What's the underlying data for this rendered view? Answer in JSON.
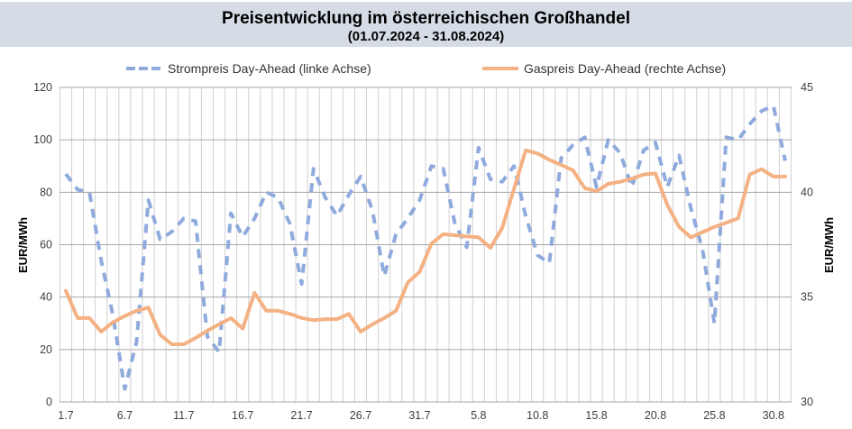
{
  "chart_data": {
    "type": "line",
    "title": "Preisentwicklung im österreichischen Großhandel",
    "subtitle": "(01.07.2024 - 31.08.2024)",
    "ylabel": "EUR/MWh",
    "y2label": "EUR/MWh",
    "ylim": [
      0,
      120
    ],
    "y2lim": [
      30,
      45
    ],
    "yticks": [
      "0",
      "20",
      "40",
      "60",
      "80",
      "100",
      "120"
    ],
    "y2ticks": [
      "30",
      "35",
      "40",
      "45"
    ],
    "x_tick_labels": [
      "1.7",
      "6.7",
      "11.7",
      "16.7",
      "21.7",
      "26.7",
      "31.7",
      "5.8",
      "10.8",
      "15.8",
      "20.8",
      "25.8",
      "30.8"
    ],
    "x": [
      "1.7",
      "2.7",
      "3.7",
      "4.7",
      "5.7",
      "6.7",
      "7.7",
      "8.7",
      "9.7",
      "10.7",
      "11.7",
      "12.7",
      "13.7",
      "14.7",
      "15.7",
      "16.7",
      "17.7",
      "18.7",
      "19.7",
      "20.7",
      "21.7",
      "22.7",
      "23.7",
      "24.7",
      "25.7",
      "26.7",
      "27.7",
      "28.7",
      "29.7",
      "30.7",
      "31.7",
      "1.8",
      "2.8",
      "3.8",
      "4.8",
      "5.8",
      "6.8",
      "7.8",
      "8.8",
      "9.8",
      "10.8",
      "11.8",
      "12.8",
      "13.8",
      "14.8",
      "15.8",
      "16.8",
      "17.8",
      "18.8",
      "19.8",
      "20.8",
      "21.8",
      "22.8",
      "23.8",
      "24.8",
      "25.8",
      "26.8",
      "27.8",
      "28.8",
      "29.8",
      "30.8",
      "31.8"
    ],
    "grid": true,
    "legend_position": "top",
    "series": [
      {
        "name": "Strompreis Day-Ahead (linke Achse)",
        "axis": "left",
        "color": "#8faadc",
        "style": "dashed",
        "values": [
          87,
          81,
          80,
          54,
          33,
          5,
          23,
          77,
          62,
          65,
          70,
          69,
          25,
          19,
          72,
          63,
          70,
          80,
          78,
          68,
          45,
          89,
          78,
          71,
          79,
          86,
          73,
          48,
          64,
          70,
          77,
          90,
          89,
          68,
          59,
          97,
          85,
          84,
          90,
          71,
          56,
          53,
          93,
          98,
          101,
          82,
          100,
          95,
          82,
          96,
          99,
          82,
          94,
          74,
          58,
          30,
          101,
          100,
          106,
          111,
          113,
          92
        ]
      },
      {
        "name": "Gaspreis Day-Ahead (rechte Achse)",
        "axis": "right",
        "color": "#f4b183",
        "style": "solid",
        "values": [
          35.3,
          34.0,
          34.0,
          33.35,
          33.8,
          34.1,
          34.35,
          34.5,
          33.2,
          32.75,
          32.75,
          33.05,
          33.4,
          33.7,
          34.0,
          33.5,
          35.2,
          34.35,
          34.35,
          34.2,
          34.0,
          33.9,
          33.95,
          33.95,
          34.2,
          33.35,
          33.7,
          34.0,
          34.35,
          35.7,
          36.2,
          37.55,
          38.0,
          37.95,
          37.9,
          37.85,
          37.35,
          38.3,
          40.15,
          42.0,
          41.85,
          41.55,
          41.3,
          41.05,
          40.2,
          40.05,
          40.4,
          40.5,
          40.65,
          40.85,
          40.9,
          39.4,
          38.35,
          37.85,
          38.1,
          38.35,
          38.55,
          38.75,
          40.85,
          41.1,
          40.75,
          40.75
        ]
      }
    ]
  }
}
